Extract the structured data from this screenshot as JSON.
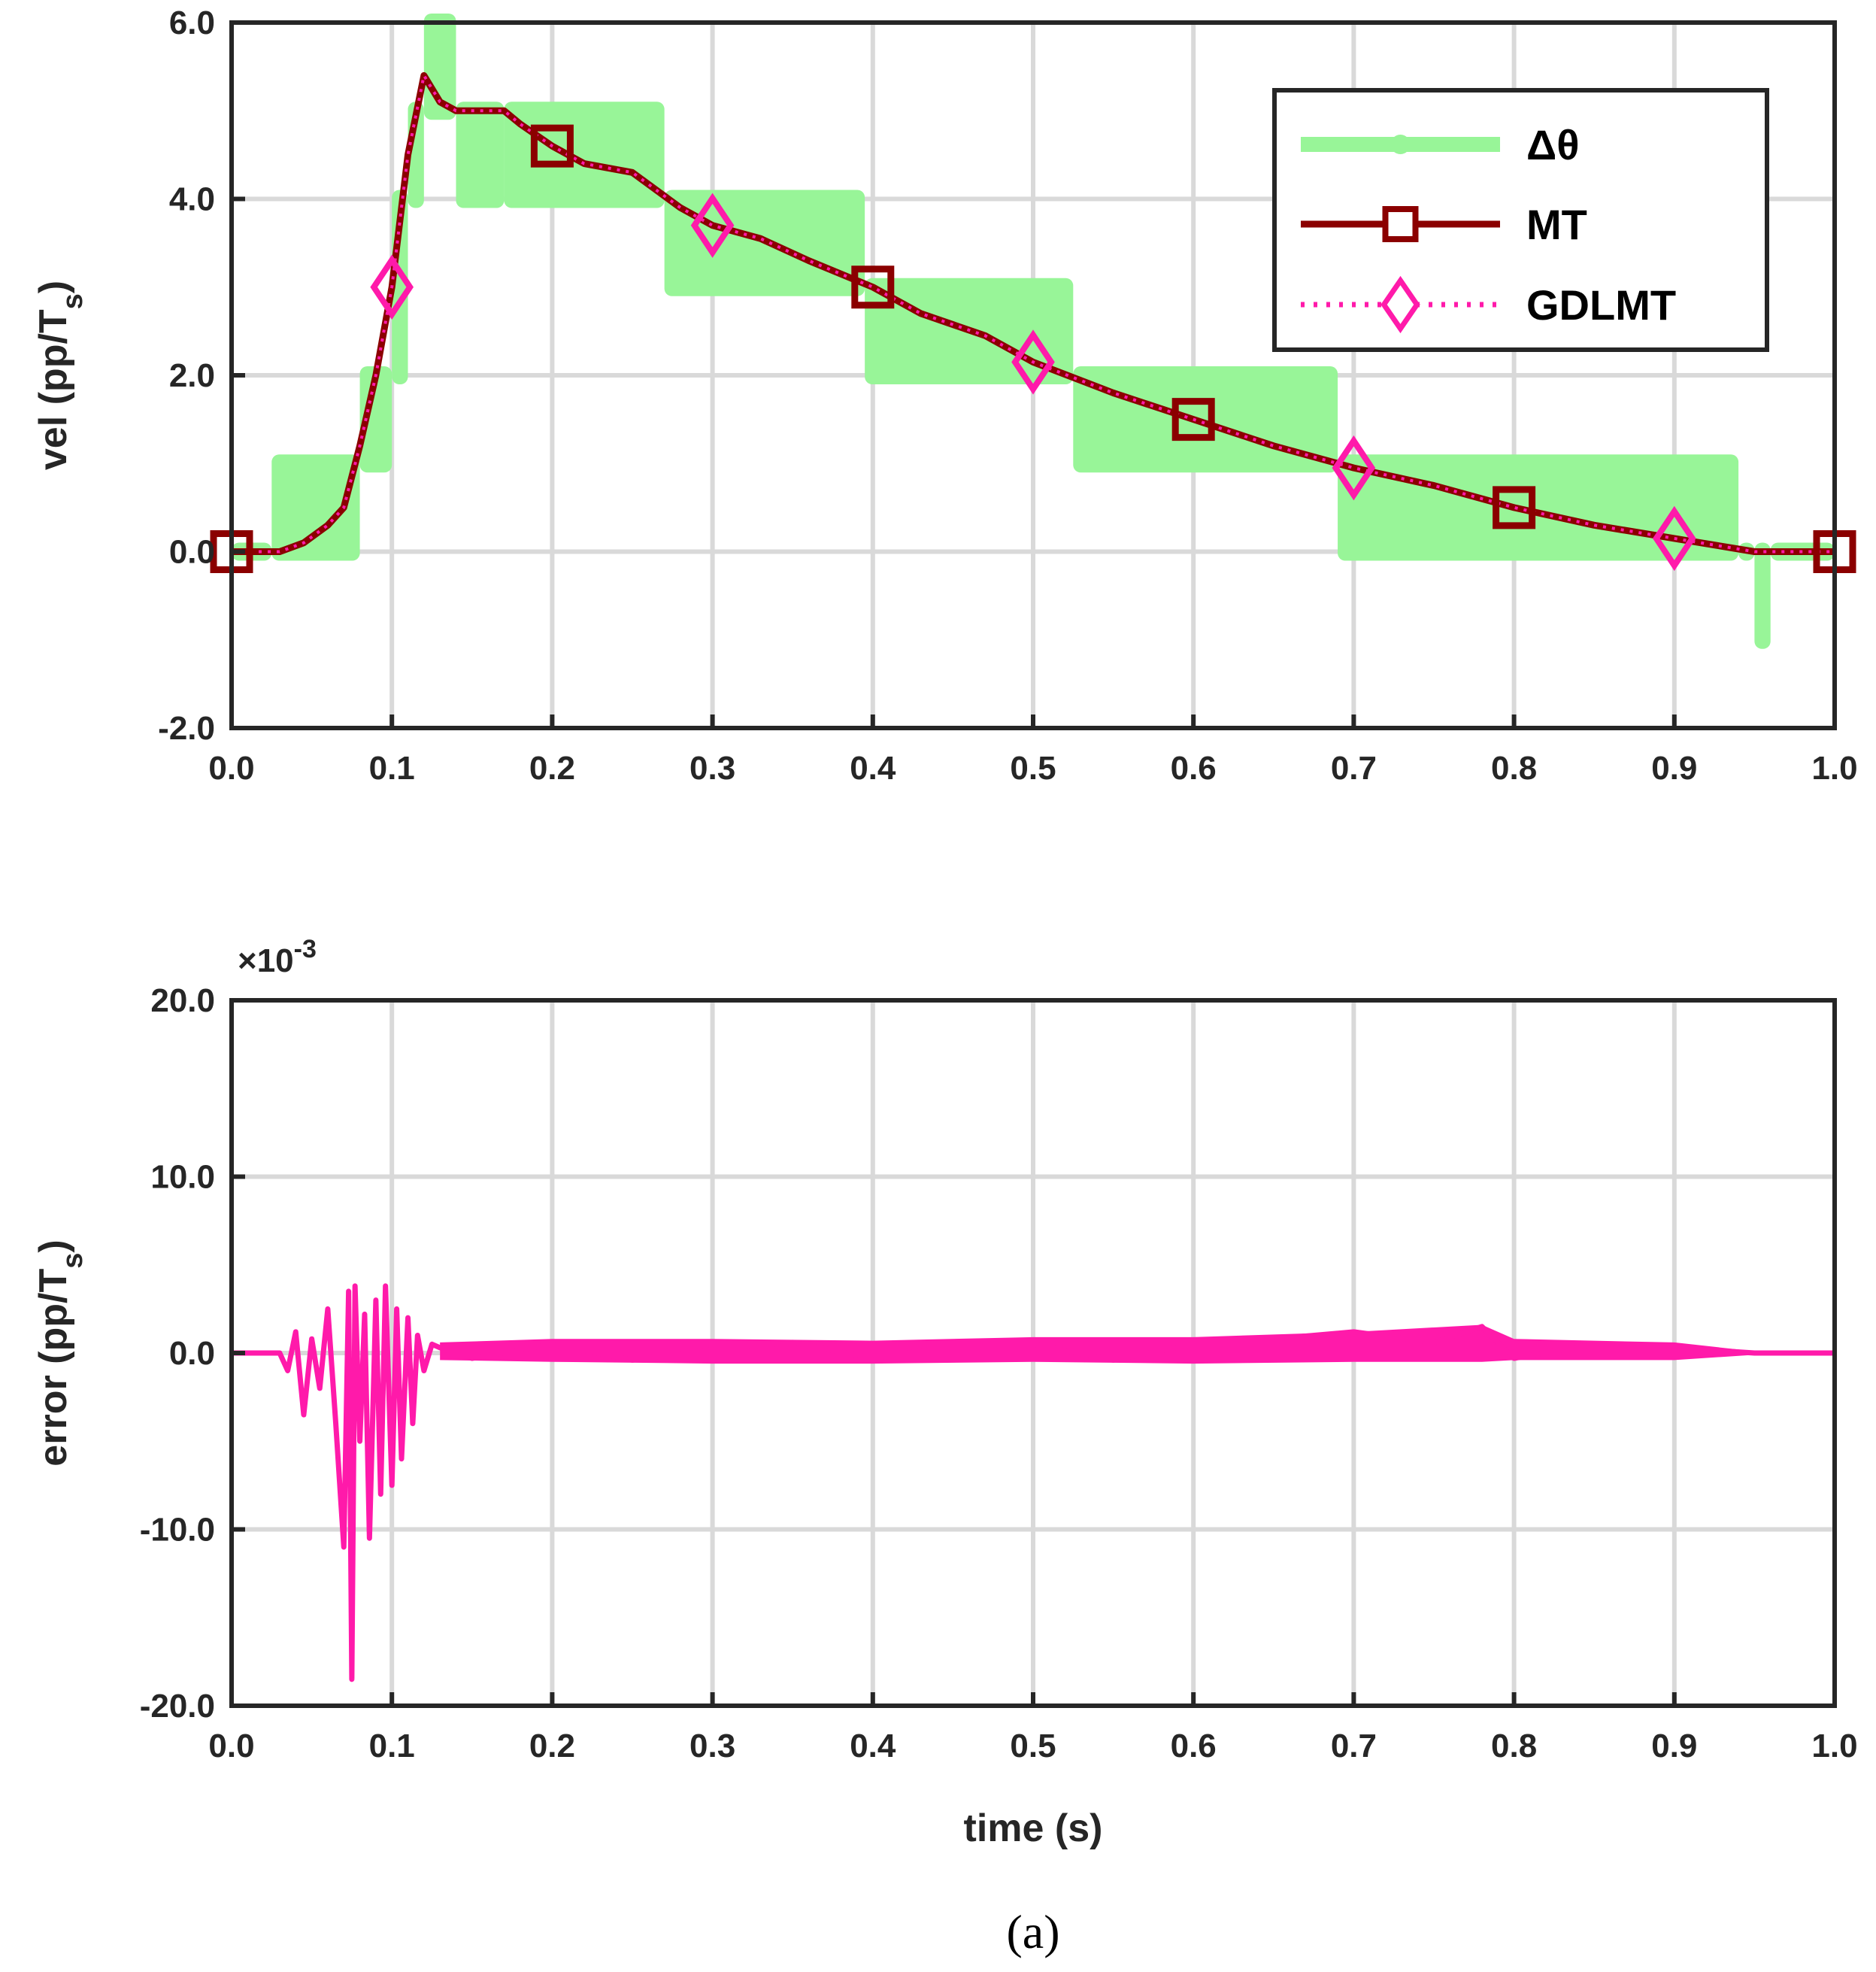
{
  "chart_data": [
    {
      "type": "line",
      "ylabel": "vel (pp/T",
      "ylabel_sub": "s",
      "ylabel_close": ")",
      "xlim": [
        0,
        1
      ],
      "ylim": [
        -2,
        6
      ],
      "xticks": [
        "0.0",
        "0.1",
        "0.2",
        "0.3",
        "0.4",
        "0.5",
        "0.6",
        "0.7",
        "0.8",
        "0.9",
        "1.0"
      ],
      "yticks": [
        "-2.0",
        "0.0",
        "2.0",
        "4.0",
        "6.0"
      ],
      "grid": true,
      "legend_position": "top-right",
      "series": [
        {
          "name": "Δθ",
          "color": "#98f598",
          "style": "quantized-steps",
          "bands": [
            {
              "x": [
                0.0,
                0.025
              ],
              "lo": 0,
              "hi": 0
            },
            {
              "x": [
                0.025,
                0.08
              ],
              "lo": 0,
              "hi": 1
            },
            {
              "x": [
                0.08,
                0.1
              ],
              "lo": 1,
              "hi": 2
            },
            {
              "x": [
                0.1,
                0.11
              ],
              "lo": 2,
              "hi": 4
            },
            {
              "x": [
                0.11,
                0.12
              ],
              "lo": 4,
              "hi": 5
            },
            {
              "x": [
                0.12,
                0.14
              ],
              "lo": 5,
              "hi": 6
            },
            {
              "x": [
                0.14,
                0.17
              ],
              "lo": 4,
              "hi": 5
            },
            {
              "x": [
                0.17,
                0.27
              ],
              "lo": 4,
              "hi": 5
            },
            {
              "x": [
                0.27,
                0.395
              ],
              "lo": 3,
              "hi": 4
            },
            {
              "x": [
                0.395,
                0.525
              ],
              "lo": 2,
              "hi": 3
            },
            {
              "x": [
                0.525,
                0.69
              ],
              "lo": 1,
              "hi": 2
            },
            {
              "x": [
                0.69,
                0.94
              ],
              "lo": 0,
              "hi": 1
            },
            {
              "x": [
                0.94,
                0.95
              ],
              "lo": 0,
              "hi": 0
            },
            {
              "x": [
                0.95,
                0.96
              ],
              "lo": -1,
              "hi": 0
            },
            {
              "x": [
                0.96,
                1.0
              ],
              "lo": 0,
              "hi": 0
            }
          ]
        },
        {
          "name": "MT",
          "color": "#8b0000",
          "marker": "square",
          "x": [
            0.0,
            0.03,
            0.045,
            0.06,
            0.07,
            0.08,
            0.09,
            0.1,
            0.11,
            0.12,
            0.13,
            0.14,
            0.16,
            0.17,
            0.18,
            0.2,
            0.22,
            0.25,
            0.28,
            0.3,
            0.33,
            0.36,
            0.4,
            0.43,
            0.47,
            0.5,
            0.55,
            0.6,
            0.65,
            0.7,
            0.75,
            0.8,
            0.85,
            0.9,
            0.95,
            1.0
          ],
          "y": [
            0.0,
            0.0,
            0.1,
            0.3,
            0.5,
            1.2,
            2.0,
            3.0,
            4.5,
            5.4,
            5.1,
            5.0,
            5.0,
            5.0,
            4.85,
            4.6,
            4.4,
            4.3,
            3.9,
            3.7,
            3.55,
            3.3,
            3.0,
            2.7,
            2.45,
            2.15,
            1.8,
            1.5,
            1.2,
            0.95,
            0.75,
            0.5,
            0.3,
            0.15,
            0.0,
            0.0
          ],
          "marker_x": [
            0.0,
            0.2,
            0.4,
            0.6,
            0.8,
            1.0
          ],
          "marker_y": [
            0.0,
            4.6,
            3.0,
            1.5,
            0.5,
            0.0
          ]
        },
        {
          "name": "GDLMT",
          "color": "#ff1aaa",
          "marker": "diamond",
          "marker_x": [
            0.1,
            0.3,
            0.5,
            0.7,
            0.9
          ],
          "marker_y": [
            3.0,
            3.7,
            2.15,
            0.95,
            0.15
          ]
        }
      ]
    },
    {
      "type": "line",
      "xlabel": "time (s)",
      "ylabel": "error (pp/T",
      "ylabel_sub": "s",
      "ylabel_close": ")",
      "multiplier_base": "×10",
      "multiplier_exp": "-3",
      "xlim": [
        0,
        1
      ],
      "ylim": [
        -20,
        20
      ],
      "xticks": [
        "0.0",
        "0.1",
        "0.2",
        "0.3",
        "0.4",
        "0.5",
        "0.6",
        "0.7",
        "0.8",
        "0.9",
        "1.0"
      ],
      "yticks": [
        "-20.0",
        "-10.0",
        "0.0",
        "10.0",
        "20.0"
      ],
      "grid": true,
      "series": [
        {
          "color": "#ff1aaa",
          "x": [
            0.0,
            0.03,
            0.035,
            0.04,
            0.045,
            0.05,
            0.055,
            0.06,
            0.065,
            0.07,
            0.073,
            0.075,
            0.077,
            0.08,
            0.083,
            0.086,
            0.09,
            0.093,
            0.096,
            0.1,
            0.103,
            0.106,
            0.11,
            0.113,
            0.116,
            0.12,
            0.125,
            0.13,
            0.15,
            0.2,
            0.25,
            0.3,
            0.35,
            0.4,
            0.45,
            0.5,
            0.55,
            0.6,
            0.65,
            0.7,
            0.75,
            0.78,
            0.8,
            0.85,
            0.9,
            0.95,
            1.0
          ],
          "y": [
            0.0,
            0.0,
            -1.0,
            1.2,
            -3.5,
            0.8,
            -2.0,
            2.5,
            -4.0,
            -11.0,
            3.5,
            -18.5,
            3.8,
            -5.0,
            2.2,
            -10.5,
            3.0,
            -8.0,
            3.8,
            -7.5,
            2.5,
            -6.0,
            2.0,
            -4.0,
            1.0,
            -1.0,
            0.5,
            0.3,
            -0.3,
            0.5,
            -0.4,
            0.2,
            0.6,
            -0.3,
            0.4,
            0.5,
            -0.4,
            0.5,
            0.8,
            1.2,
            0.6,
            1.5,
            -0.3,
            0.5,
            0.3,
            0.0,
            0.0
          ],
          "band_x": [
            0.13,
            0.2,
            0.3,
            0.4,
            0.5,
            0.6,
            0.7,
            0.78,
            0.8,
            0.9,
            0.95
          ],
          "band_lo": [
            -0.4,
            -0.5,
            -0.6,
            -0.6,
            -0.5,
            -0.6,
            -0.5,
            -0.5,
            -0.4,
            -0.4,
            -0.1
          ],
          "band_hi": [
            0.6,
            0.8,
            0.8,
            0.7,
            0.9,
            0.9,
            1.2,
            1.6,
            0.8,
            0.6,
            0.1
          ]
        }
      ]
    }
  ],
  "legend": {
    "items": [
      "Δθ",
      "MT",
      "GDLMT"
    ]
  },
  "caption": "(a)"
}
